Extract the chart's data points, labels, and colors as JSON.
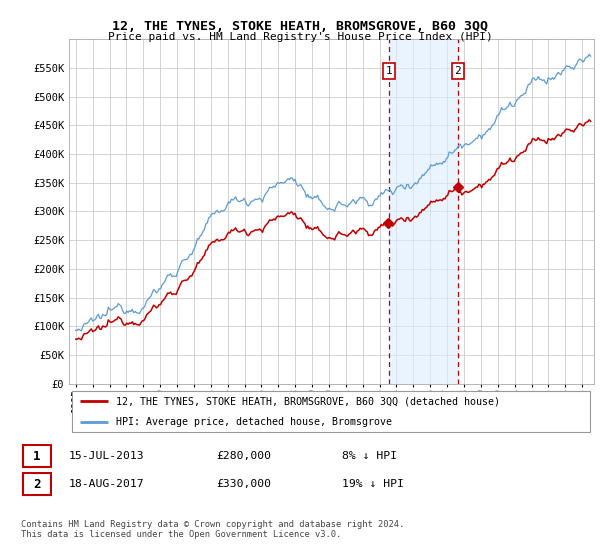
{
  "title": "12, THE TYNES, STOKE HEATH, BROMSGROVE, B60 3QQ",
  "subtitle": "Price paid vs. HM Land Registry's House Price Index (HPI)",
  "ylim": [
    0,
    600000
  ],
  "yticks": [
    0,
    50000,
    100000,
    150000,
    200000,
    250000,
    300000,
    350000,
    400000,
    450000,
    500000,
    550000
  ],
  "ytick_labels": [
    "£0",
    "£50K",
    "£100K",
    "£150K",
    "£200K",
    "£250K",
    "£300K",
    "£350K",
    "£400K",
    "£450K",
    "£500K",
    "£550K"
  ],
  "hpi_color": "#5b9bd5",
  "price_color": "#c00000",
  "marker1_date": 2013.54,
  "marker2_date": 2017.63,
  "marker1_price": 280000,
  "marker2_price": 330000,
  "legend_line1": "12, THE TYNES, STOKE HEATH, BROMSGROVE, B60 3QQ (detached house)",
  "legend_line2": "HPI: Average price, detached house, Bromsgrove",
  "footer": "Contains HM Land Registry data © Crown copyright and database right 2024.\nThis data is licensed under the Open Government Licence v3.0.",
  "background_color": "#ffffff",
  "grid_color": "#cccccc",
  "span_color": "#ddeeff"
}
